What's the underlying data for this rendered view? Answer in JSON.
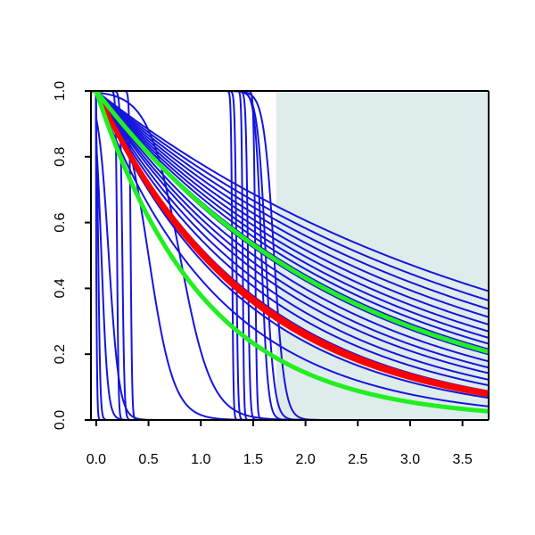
{
  "chart_data": {
    "type": "line",
    "title": "",
    "xlabel": "",
    "ylabel": "",
    "xlim": [
      -0.05,
      3.75
    ],
    "ylim": [
      0.0,
      1.0
    ],
    "x_ticks": [
      0.0,
      0.5,
      1.0,
      1.5,
      2.0,
      2.5,
      3.0,
      3.5
    ],
    "x_tick_labels": [
      "0.0",
      "0.5",
      "1.0",
      "1.5",
      "2.0",
      "2.5",
      "3.0",
      "3.5"
    ],
    "y_ticks": [
      0.0,
      0.2,
      0.4,
      0.6,
      0.8,
      1.0
    ],
    "y_tick_labels": [
      "0.0",
      "0.2",
      "0.4",
      "0.6",
      "0.8",
      "1.0"
    ],
    "grid": false,
    "legend": "none",
    "shaded_region": {
      "x_from": 1.72,
      "x_to": 3.75,
      "color": "#dfecec"
    },
    "colors": {
      "blue": "#1515dd",
      "red": "#ff0000",
      "green": "#22ee22",
      "background": "#ffffff"
    },
    "series": [
      {
        "color": "blue",
        "model": "exp",
        "rate": 0.25
      },
      {
        "color": "blue",
        "model": "exp",
        "rate": 0.27
      },
      {
        "color": "blue",
        "model": "exp",
        "rate": 0.29
      },
      {
        "color": "blue",
        "model": "exp",
        "rate": 0.31
      },
      {
        "color": "blue",
        "model": "exp",
        "rate": 0.33
      },
      {
        "color": "blue",
        "model": "exp",
        "rate": 0.35
      },
      {
        "color": "blue",
        "model": "exp",
        "rate": 0.37
      },
      {
        "color": "blue",
        "model": "exp",
        "rate": 0.39
      },
      {
        "color": "blue",
        "model": "exp",
        "rate": 0.41
      },
      {
        "color": "blue",
        "model": "exp",
        "rate": 0.43
      },
      {
        "color": "blue",
        "model": "exp",
        "rate": 0.46
      },
      {
        "color": "blue",
        "model": "exp",
        "rate": 0.49
      },
      {
        "color": "blue",
        "model": "exp",
        "rate": 0.52
      },
      {
        "color": "blue",
        "model": "exp",
        "rate": 0.56
      },
      {
        "color": "blue",
        "model": "exp",
        "rate": 0.6
      },
      {
        "color": "blue",
        "model": "exp",
        "rate": 0.65
      },
      {
        "color": "blue",
        "model": "exp",
        "rate": 0.72
      },
      {
        "color": "blue",
        "model": "exp",
        "rate": 0.85
      },
      {
        "color": "blue",
        "model": "logistic",
        "mid": 0.0,
        "scale": 0.005
      },
      {
        "color": "blue",
        "model": "logistic",
        "mid": 0.02,
        "scale": 0.01
      },
      {
        "color": "blue",
        "model": "logistic",
        "mid": 0.05,
        "scale": 0.03
      },
      {
        "color": "blue",
        "model": "logistic",
        "mid": 0.12,
        "scale": 0.05
      },
      {
        "color": "blue",
        "model": "logistic",
        "mid": 0.2,
        "scale": 0.007
      },
      {
        "color": "blue",
        "model": "logistic",
        "mid": 0.25,
        "scale": 0.01
      },
      {
        "color": "blue",
        "model": "logistic",
        "mid": 0.33,
        "scale": 0.007
      },
      {
        "color": "blue",
        "model": "logistic",
        "mid": 0.5,
        "scale": 0.12
      },
      {
        "color": "blue",
        "model": "logistic",
        "mid": 0.8,
        "scale": 0.15
      },
      {
        "color": "blue",
        "model": "logistic",
        "mid": 1.3,
        "scale": 0.006
      },
      {
        "color": "blue",
        "model": "logistic",
        "mid": 1.34,
        "scale": 0.008
      },
      {
        "color": "blue",
        "model": "logistic",
        "mid": 1.4,
        "scale": 0.006
      },
      {
        "color": "blue",
        "model": "logistic",
        "mid": 1.45,
        "scale": 0.01
      },
      {
        "color": "blue",
        "model": "logistic",
        "mid": 1.52,
        "scale": 0.008
      },
      {
        "color": "blue",
        "model": "logistic",
        "mid": 1.58,
        "scale": 0.03
      },
      {
        "color": "blue",
        "model": "logistic",
        "mid": 1.62,
        "scale": 0.04
      },
      {
        "color": "blue",
        "model": "logistic",
        "mid": 1.7,
        "scale": 0.05
      },
      {
        "color": "red",
        "model": "exp",
        "rate": 0.665
      },
      {
        "color": "red",
        "model": "exp",
        "rate": 0.685
      },
      {
        "color": "red",
        "model": "exp",
        "rate": 0.675
      },
      {
        "color": "green",
        "model": "exp",
        "rate": 0.42
      },
      {
        "color": "green",
        "model": "exp",
        "rate": 0.97
      }
    ]
  }
}
